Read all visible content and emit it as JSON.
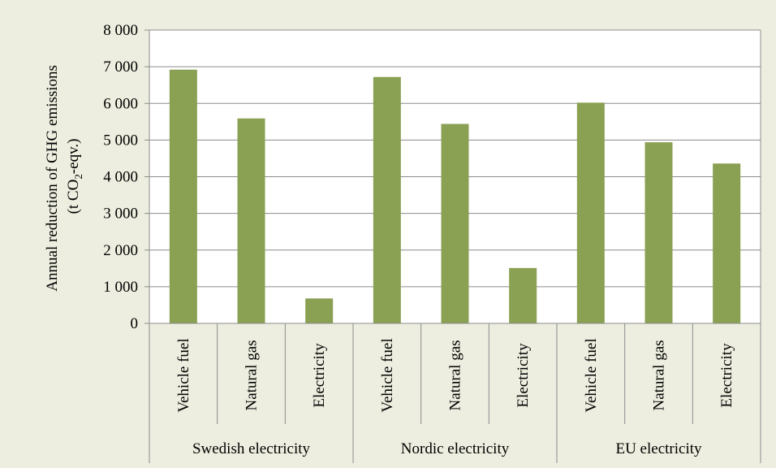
{
  "chart_data": {
    "type": "bar",
    "ylabel_line1": "Annual reduction of GHG emissions",
    "ylabel_line2_prefix": "(t CO",
    "ylabel_line2_sub": "2",
    "ylabel_line2_suffix": "-eqv.)",
    "ylim": [
      0,
      8000
    ],
    "yticks": [
      0,
      1000,
      2000,
      3000,
      4000,
      5000,
      6000,
      7000,
      8000
    ],
    "ytick_labels": [
      "0",
      "1 000",
      "2 000",
      "3 000",
      "4 000",
      "5 000",
      "6 000",
      "7 000",
      "8 000"
    ],
    "grid": true,
    "bar_color": "#8aa052",
    "groups": [
      {
        "name": "Swedish electricity",
        "categories": [
          "Vehicle fuel",
          "Natural gas",
          "Electricity"
        ],
        "values": [
          6920,
          5590,
          680
        ]
      },
      {
        "name": "Nordic electricity",
        "categories": [
          "Vehicle fuel",
          "Natural gas",
          "Electricity"
        ],
        "values": [
          6720,
          5440,
          1510
        ]
      },
      {
        "name": "EU electricity",
        "categories": [
          "Vehicle fuel",
          "Natural gas",
          "Electricity"
        ],
        "values": [
          6020,
          4940,
          4360
        ]
      }
    ]
  }
}
